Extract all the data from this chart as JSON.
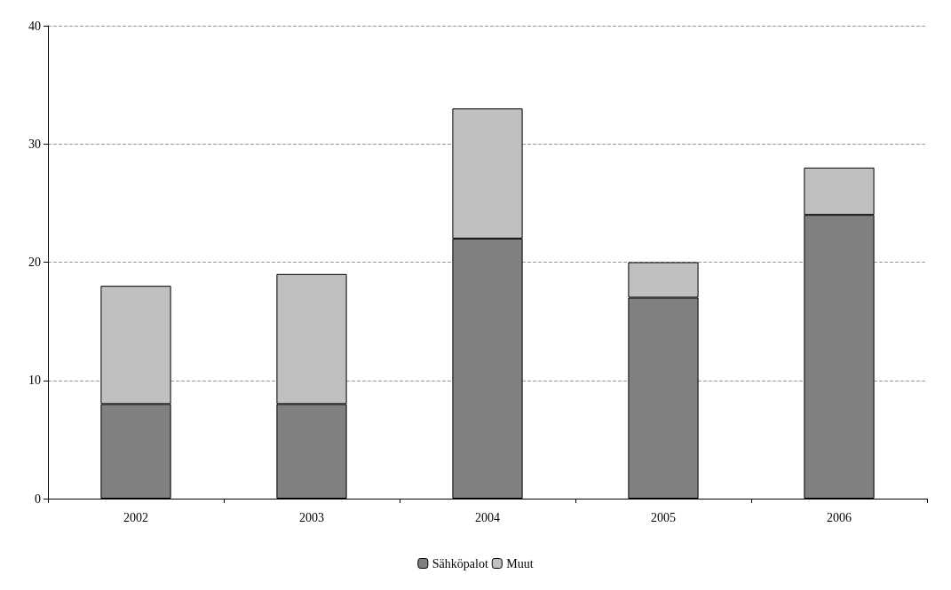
{
  "chart_data": {
    "type": "bar",
    "stacked": true,
    "categories": [
      "2002",
      "2003",
      "2004",
      "2005",
      "2006"
    ],
    "series": [
      {
        "name": "Sähköpalot",
        "color": "#808080",
        "values": [
          8,
          8,
          22,
          17,
          24
        ]
      },
      {
        "name": "Muut",
        "color": "#c0c0c0",
        "values": [
          10,
          11,
          11,
          3,
          4
        ]
      }
    ],
    "ylim": [
      0,
      40
    ],
    "yticks": [
      0,
      10,
      20,
      30,
      40
    ],
    "grid": "y",
    "legend": "bottom"
  }
}
